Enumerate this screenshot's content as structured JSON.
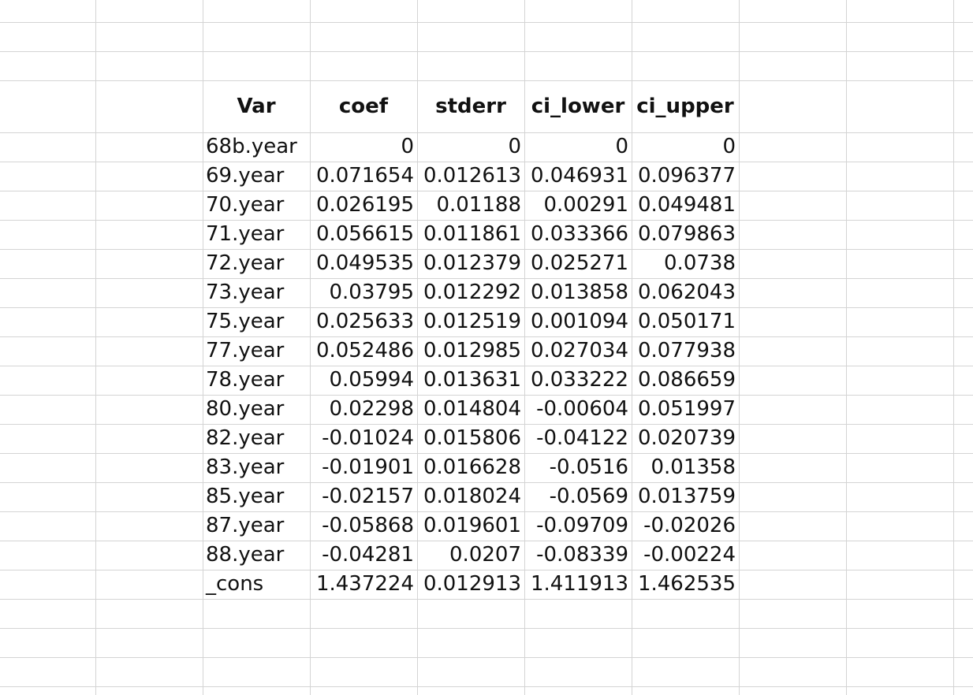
{
  "table": {
    "headers": [
      "Var",
      "coef",
      "stderr",
      "ci_lower",
      "ci_upper"
    ],
    "rows": [
      [
        "68b.year",
        "0",
        "0",
        "0",
        "0"
      ],
      [
        "69.year",
        "0.071654",
        "0.012613",
        "0.046931",
        "0.096377"
      ],
      [
        "70.year",
        "0.026195",
        "0.01188",
        "0.00291",
        "0.049481"
      ],
      [
        "71.year",
        "0.056615",
        "0.011861",
        "0.033366",
        "0.079863"
      ],
      [
        "72.year",
        "0.049535",
        "0.012379",
        "0.025271",
        "0.0738"
      ],
      [
        "73.year",
        "0.03795",
        "0.012292",
        "0.013858",
        "0.062043"
      ],
      [
        "75.year",
        "0.025633",
        "0.012519",
        "0.001094",
        "0.050171"
      ],
      [
        "77.year",
        "0.052486",
        "0.012985",
        "0.027034",
        "0.077938"
      ],
      [
        "78.year",
        "0.05994",
        "0.013631",
        "0.033222",
        "0.086659"
      ],
      [
        "80.year",
        "0.02298",
        "0.014804",
        "-0.00604",
        "0.051997"
      ],
      [
        "82.year",
        "-0.01024",
        "0.015806",
        "-0.04122",
        "0.020739"
      ],
      [
        "83.year",
        "-0.01901",
        "0.016628",
        "-0.0516",
        "0.01358"
      ],
      [
        "85.year",
        "-0.02157",
        "0.018024",
        "-0.0569",
        "0.013759"
      ],
      [
        "87.year",
        "-0.05868",
        "0.019601",
        "-0.09709",
        "-0.02026"
      ],
      [
        "88.year",
        "-0.04281",
        "0.0207",
        "-0.08339",
        "-0.00224"
      ],
      [
        "_cons",
        "1.437224",
        "0.012913",
        "1.411913",
        "1.462535"
      ]
    ]
  },
  "colors": {
    "gridline": "#d4d4d4",
    "text": "#111111",
    "background": "#ffffff"
  }
}
